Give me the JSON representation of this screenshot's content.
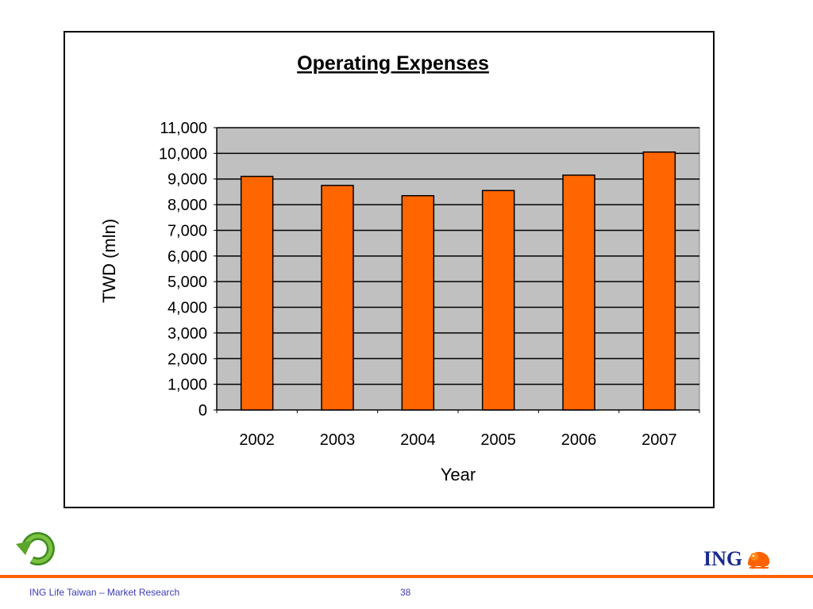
{
  "chart_data": {
    "type": "bar",
    "title": "Operating Expenses",
    "xlabel": "Year",
    "ylabel": "TWD (mln)",
    "categories": [
      "2002",
      "2003",
      "2004",
      "2005",
      "2006",
      "2007"
    ],
    "values": [
      9100,
      8750,
      8350,
      8550,
      9150,
      10050
    ],
    "ylim": [
      0,
      11000
    ],
    "yticks": [
      0,
      1000,
      2000,
      3000,
      4000,
      5000,
      6000,
      7000,
      8000,
      9000,
      10000,
      11000
    ],
    "ytick_labels": [
      "0",
      "1,000",
      "2,000",
      "3,000",
      "4,000",
      "5,000",
      "6,000",
      "7,000",
      "8,000",
      "9,000",
      "10,000",
      "11,000"
    ],
    "grid": true,
    "plot_background": "#c0c0c0",
    "bar_color": "#ff6600",
    "legend": "none"
  },
  "footer": {
    "left_text": "ING Life Taiwan – Market Research",
    "page_number": "38",
    "accent_color": "#ff6200"
  },
  "logo": {
    "text": "ING",
    "icon": "lion-icon"
  },
  "nav": {
    "back_icon": "return-arrow-icon"
  }
}
